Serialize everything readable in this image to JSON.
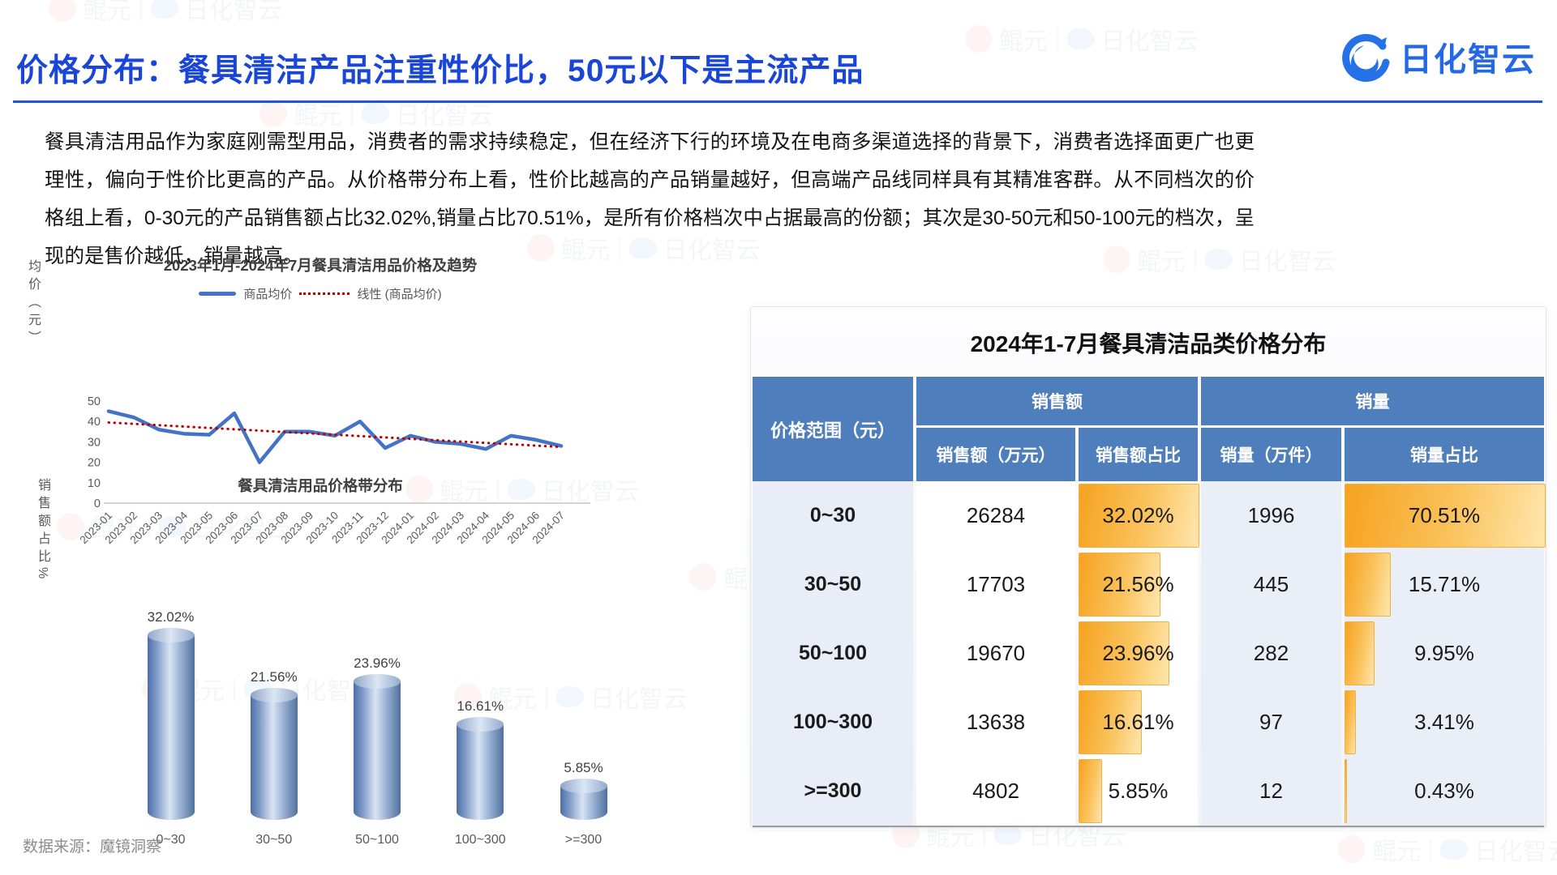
{
  "page": {
    "title": "价格分布：餐具清洁产品注重性价比，50元以下是主流产品",
    "paragraph": "餐具清洁用品作为家庭刚需型用品，消费者的需求持续稳定，但在经济下行的环境及在电商多渠道选择的背景下，消费者选择面更广也更理性，偏向于性价比更高的产品。从价格带分布上看，性价比越高的产品销量越好，但高端产品线同样具有其精准客群。从不同档次的价格组上看，0-30元的产品销售额占比32.02%,销量占比70.51%，是所有价格档次中占据最高的份额；其次是30-50元和50-100元的档次，呈现的是售价越低，销量越高。",
    "logo_text": "日化智云",
    "source_note": "数据来源：魔镜洞察",
    "watermark_text": "鲲元",
    "watermark_text2": "日化智云",
    "accent_blue": "#1A46D8",
    "header_blue": "#4E7EBB",
    "bar_orange": "#F6A21F"
  },
  "chart_data": [
    {
      "type": "line",
      "title": "2023年1月-2024年7月餐具清洁用品价格及趋势",
      "ylabel": "均价（元）",
      "xlabel": "",
      "ylim": [
        0,
        50
      ],
      "yticks": [
        0,
        10,
        20,
        30,
        40,
        50
      ],
      "grid": false,
      "legend_position": "top",
      "x": [
        "2023-01",
        "2023-02",
        "2023-03",
        "2023-04",
        "2023-05",
        "2023-06",
        "2023-07",
        "2023-08",
        "2023-09",
        "2023-10",
        "2023-11",
        "2023-12",
        "2024-01",
        "2024-02",
        "2024-03",
        "2024-04",
        "2024-05",
        "2024-06",
        "2024-07"
      ],
      "series": [
        {
          "name": "商品均价",
          "color": "#4472C4",
          "style": "solid",
          "values": [
            45,
            42,
            36,
            34,
            33.5,
            44,
            20,
            35,
            35,
            33,
            40,
            27,
            33,
            30,
            29,
            26.5,
            33,
            31,
            28
          ]
        },
        {
          "name": "线性 (商品均价)",
          "color": "#C00000",
          "style": "dotted",
          "trend_start": 39.5,
          "trend_end": 27.5
        }
      ]
    },
    {
      "type": "bar",
      "title": "餐具清洁用品价格带分布",
      "ylabel": "销售额占比%",
      "xlabel": "",
      "categories": [
        "0~30",
        "30~50",
        "50~100",
        "100~300",
        ">=300"
      ],
      "values": [
        32.02,
        21.56,
        23.96,
        16.61,
        5.85
      ],
      "labels": [
        "32.02%",
        "21.56%",
        "23.96%",
        "16.61%",
        "5.85%"
      ]
    },
    {
      "type": "table",
      "title": "2024年1-7月餐具清洁品类价格分布",
      "corner_header": "价格范围（元）",
      "group_headers": [
        "销售额",
        "销量"
      ],
      "sub_headers": [
        "销售额（万元）",
        "销售额占比",
        "销量（万件）",
        "销量占比"
      ],
      "rows": [
        [
          "0~30",
          "26284",
          "32.02%",
          "1996",
          "70.51%"
        ],
        [
          "30~50",
          "17703",
          "21.56%",
          "445",
          "15.71%"
        ],
        [
          "50~100",
          "19670",
          "23.96%",
          "282",
          "9.95%"
        ],
        [
          "100~300",
          "13638",
          "16.61%",
          "97",
          "3.41%"
        ],
        [
          ">=300",
          "4802",
          "5.85%",
          "12",
          "0.43%"
        ]
      ],
      "sales_pct_values": [
        32.02,
        21.56,
        23.96,
        16.61,
        5.85
      ],
      "volume_pct_values": [
        70.51,
        15.71,
        9.95,
        3.41,
        0.43
      ]
    }
  ]
}
